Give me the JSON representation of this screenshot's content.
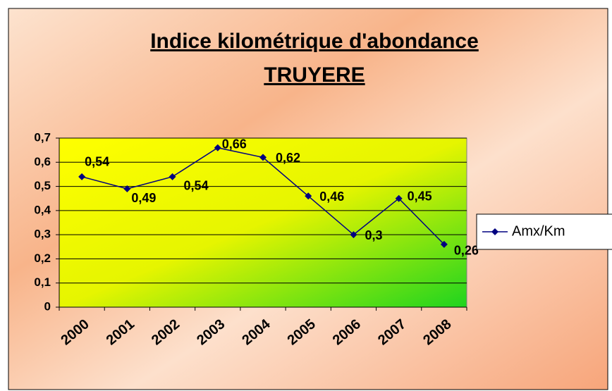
{
  "chart_data": {
    "type": "line",
    "title": [
      "Indice kilométrique d'abondance",
      "TRUYERE"
    ],
    "categories": [
      "2000",
      "2001",
      "2002",
      "2003",
      "2004",
      "2005",
      "2006",
      "2007",
      "2008"
    ],
    "series": [
      {
        "name": "Amx/Km",
        "color": "#000080",
        "values": [
          0.54,
          0.49,
          0.54,
          0.66,
          0.62,
          0.46,
          0.3,
          0.45,
          0.26
        ],
        "value_labels": [
          "0,54",
          "0,49",
          "0,54",
          "0,66",
          "0,62",
          "0,46",
          "0,3",
          "0,45",
          "0,26"
        ]
      }
    ],
    "ylim": [
      0,
      0.7
    ],
    "yticks": [
      0,
      {
        "value": 0.1,
        "label": "0,1"
      },
      {
        "value": 0.2,
        "label": "0,2"
      },
      {
        "value": 0.3,
        "label": "0,3"
      },
      {
        "value": 0.4,
        "label": "0,4"
      },
      {
        "value": 0.5,
        "label": "0,5"
      },
      {
        "value": 0.6,
        "label": "0,6"
      },
      {
        "value": 0.7,
        "label": "0,7"
      }
    ],
    "grid": true,
    "legend": "right"
  }
}
